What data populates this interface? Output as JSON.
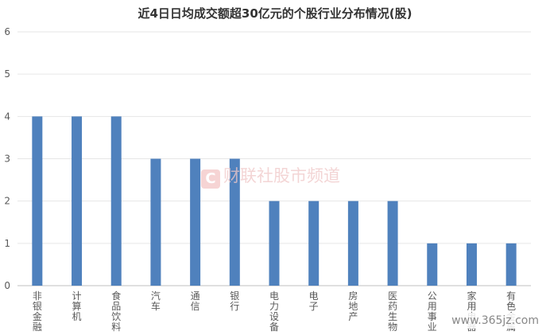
{
  "chart_data": {
    "type": "bar",
    "title": "近4日日均成交额超30亿元的个股行业分布情况(股)",
    "categories": [
      "非银金融",
      "计算机",
      "食品饮料",
      "汽车",
      "通信",
      "银行",
      "电力设备",
      "电子",
      "房地产",
      "医药生物",
      "公用事业",
      "家用电器",
      "有色金属"
    ],
    "values": [
      4,
      4,
      4,
      3,
      3,
      3,
      2,
      2,
      2,
      2,
      1,
      1,
      1
    ],
    "ylim": [
      0,
      6
    ],
    "yticks": [
      0,
      1,
      2,
      3,
      4,
      5,
      6
    ],
    "grid": true,
    "bar_color": "#4f81bd"
  },
  "watermark": {
    "logo_letter": "C",
    "text": "财联社股市频道"
  },
  "site_mark": "www.365jz.com",
  "colors": {
    "axis_text": "#595959",
    "grid": "#e6e6e6",
    "axis": "#bfbfbf"
  }
}
